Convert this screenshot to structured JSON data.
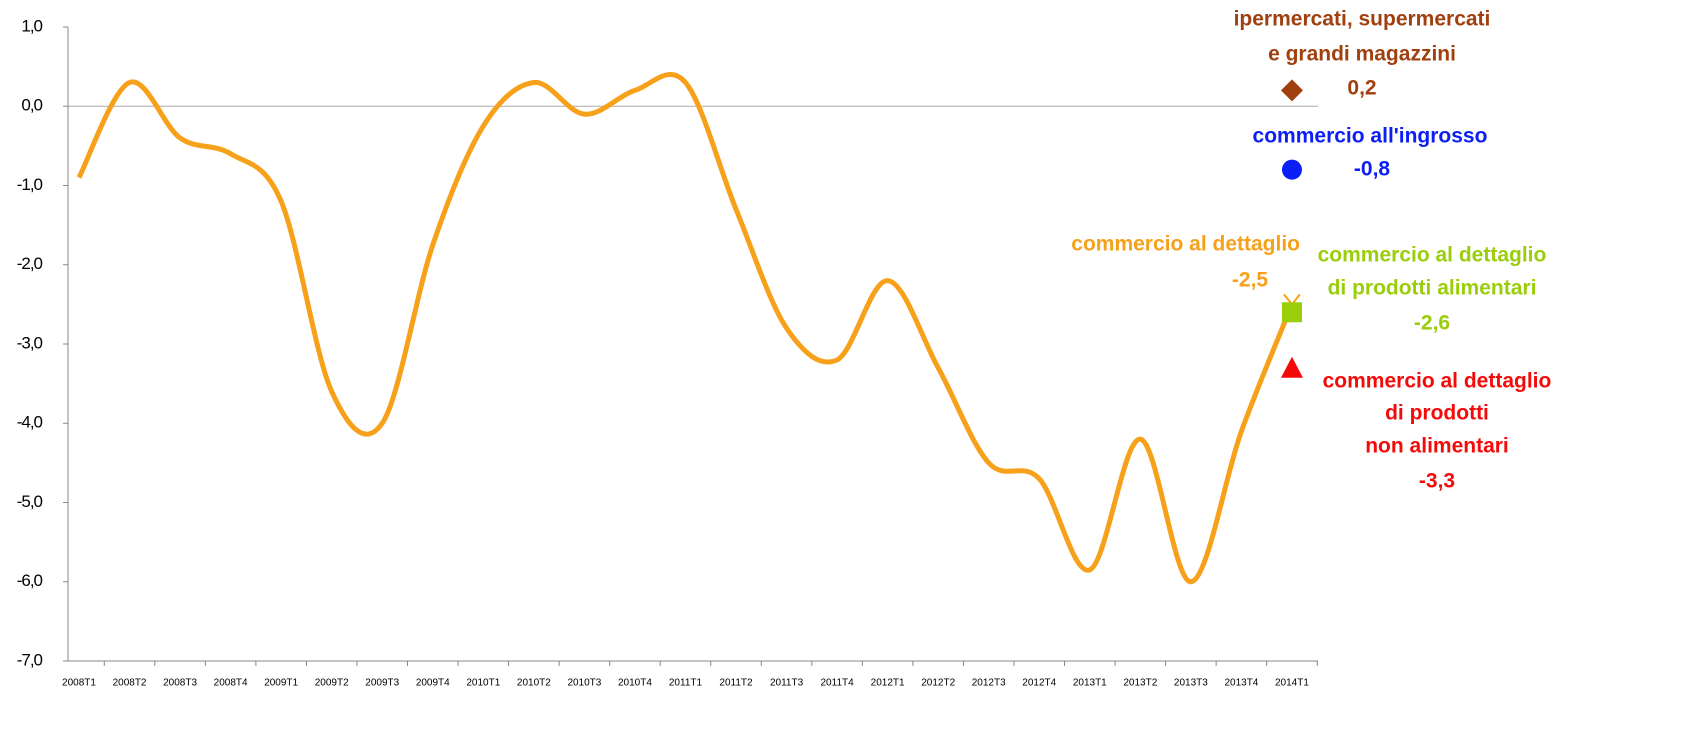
{
  "chart_data": {
    "type": "line",
    "categories": [
      "2008T1",
      "2008T2",
      "2008T3",
      "2008T4",
      "2009T1",
      "2009T2",
      "2009T3",
      "2009T4",
      "2010T1",
      "2010T2",
      "2010T3",
      "2010T4",
      "2011T1",
      "2011T2",
      "2011T3",
      "2011T4",
      "2012T1",
      "2012T2",
      "2012T3",
      "2012T4",
      "2013T1",
      "2013T2",
      "2013T3",
      "2013T4",
      "2014T1"
    ],
    "series": [
      {
        "name": "commercio al dettaglio",
        "color": "#f7a11a",
        "values": [
          -0.9,
          0.3,
          -0.4,
          -0.6,
          -1.2,
          -3.6,
          -4.0,
          -1.75,
          -0.25,
          0.3,
          -0.1,
          0.2,
          0.3,
          -1.3,
          -2.8,
          -3.2,
          -2.2,
          -3.3,
          -4.5,
          -4.7,
          -5.85,
          -4.2,
          -6.0,
          -4.1,
          -2.5
        ],
        "value_labels": [
          null,
          null,
          null,
          null,
          null,
          null,
          null,
          null,
          null,
          null,
          null,
          null,
          null,
          null,
          null,
          null,
          null,
          null,
          null,
          null,
          null,
          null,
          null,
          null,
          "-2,5"
        ]
      }
    ],
    "markers": [
      {
        "name": [
          "ipermercati, supermercati",
          "e grandi magazzini"
        ],
        "color": "#a0400e",
        "shape": "diamond",
        "value": 0.2,
        "value_label": "0,2"
      },
      {
        "name": [
          "commercio all'ingrosso"
        ],
        "color": "#0a1ef5",
        "shape": "circle",
        "value": -0.8,
        "value_label": "-0,8"
      },
      {
        "name": [
          "commercio al dettaglio",
          "di prodotti alimentari"
        ],
        "color": "#9acd0a",
        "shape": "square",
        "value": -2.6,
        "value_label": "-2,6"
      },
      {
        "name": [
          "commercio al dettaglio",
          "di prodotti",
          "non alimentari"
        ],
        "color": "#f50a0a",
        "shape": "triangle",
        "value": -3.3,
        "value_label": "-3,3"
      }
    ],
    "ylim": [
      -7,
      1
    ],
    "yticks": [
      {
        "value": 1,
        "label": "1,0"
      },
      {
        "value": 0,
        "label": "0,0"
      },
      {
        "value": -1,
        "label": "-1,0"
      },
      {
        "value": -2,
        "label": "-2,0"
      },
      {
        "value": -3,
        "label": "-3,0"
      },
      {
        "value": -4,
        "label": "-4,0"
      },
      {
        "value": -5,
        "label": "-5,0"
      },
      {
        "value": -6,
        "label": "-6,0"
      },
      {
        "value": -7,
        "label": "-7,0"
      }
    ],
    "grid": false
  }
}
